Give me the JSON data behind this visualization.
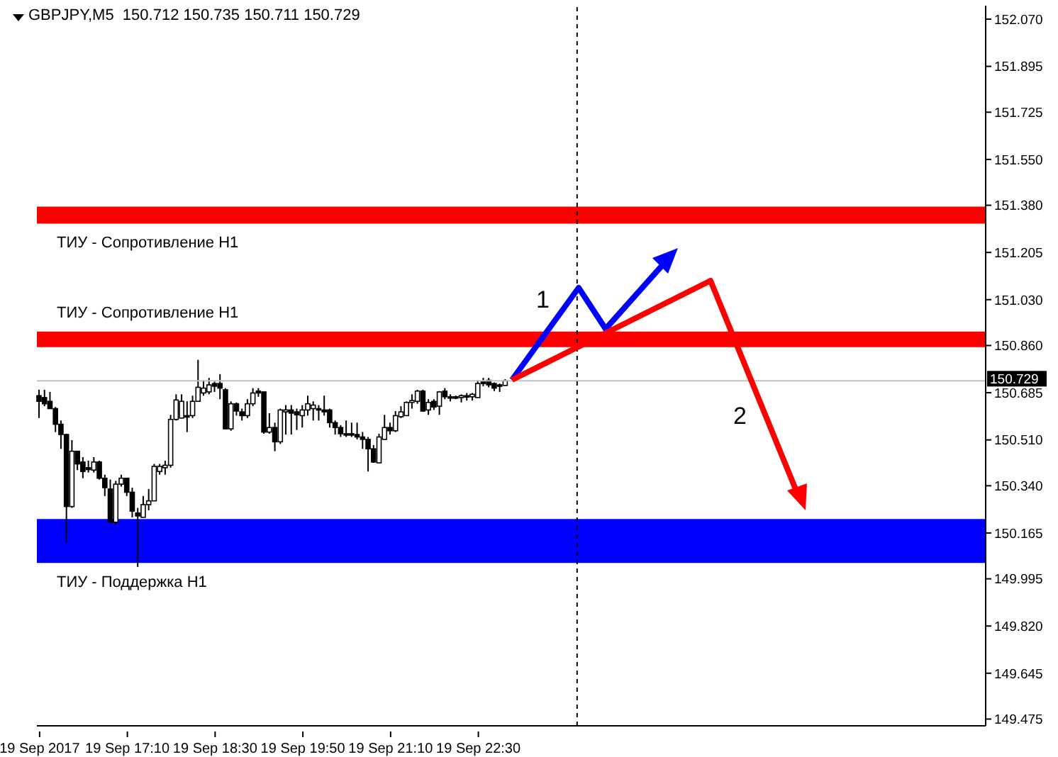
{
  "chart_data": {
    "type": "candlestick",
    "title": "GBPJPY,M5  150.712 150.735 150.711 150.729",
    "color": "#000000",
    "categories": [
      "19 Sep 2017",
      null,
      null,
      null,
      null,
      null,
      null,
      null,
      null,
      null,
      null,
      null,
      null,
      null,
      null,
      null,
      "19 Sep 17:10",
      null,
      null,
      null,
      null,
      null,
      null,
      null,
      null,
      null,
      null,
      null,
      null,
      null,
      null,
      null,
      "19 Sep 18:30",
      null,
      null,
      null,
      null,
      null,
      null,
      null,
      null,
      null,
      null,
      null,
      null,
      null,
      null,
      null,
      "19 Sep 19:50",
      null,
      null,
      null,
      null,
      null,
      null,
      null,
      null,
      null,
      null,
      null,
      null,
      null,
      null,
      null,
      "19 Sep 21:10",
      null,
      null,
      null,
      null,
      null,
      null,
      null,
      null,
      null,
      null,
      null,
      null,
      null,
      null,
      null,
      "19 Sep 22:30",
      null,
      null,
      null,
      null,
      null,
      null,
      null,
      null,
      null,
      null,
      null,
      null,
      null,
      null,
      null,
      null,
      null,
      null,
      null,
      null,
      null,
      null,
      null,
      null,
      null,
      null,
      null,
      null,
      null,
      null,
      null,
      null,
      null,
      null,
      null,
      null,
      null,
      null,
      null,
      null,
      null,
      null,
      null,
      null,
      null,
      null,
      null,
      null,
      null,
      null,
      null,
      null,
      null,
      null,
      null,
      null,
      null,
      null,
      null,
      null,
      null,
      null,
      null,
      null,
      null,
      null,
      null,
      null,
      null,
      null,
      null,
      null,
      null,
      null,
      null,
      null,
      null,
      null,
      null,
      null,
      null,
      null,
      null,
      null,
      null,
      null,
      null,
      null,
      null,
      null,
      null,
      null
    ],
    "ohlc": [
      [
        150.674,
        150.696,
        150.591,
        150.653
      ],
      [
        150.667,
        150.696,
        150.635,
        150.644
      ],
      [
        150.653,
        150.688,
        150.626,
        150.626
      ],
      [
        150.626,
        150.632,
        150.539,
        150.568
      ],
      [
        150.568,
        150.582,
        150.477,
        150.53
      ],
      [
        150.53,
        150.533,
        150.13,
        150.263
      ],
      [
        150.263,
        150.509,
        150.258,
        150.468
      ],
      [
        150.468,
        150.468,
        150.398,
        150.421
      ],
      [
        150.428,
        150.446,
        150.368,
        150.393
      ],
      [
        150.407,
        150.433,
        150.389,
        150.4
      ],
      [
        150.398,
        150.446,
        150.389,
        150.428
      ],
      [
        150.428,
        150.433,
        150.363,
        150.368
      ],
      [
        150.368,
        150.381,
        150.302,
        150.333
      ],
      [
        150.328,
        150.363,
        150.202,
        150.205
      ],
      [
        150.205,
        150.358,
        150.196,
        150.346
      ],
      [
        150.346,
        150.381,
        150.337,
        150.368
      ],
      [
        150.368,
        150.368,
        150.302,
        150.316
      ],
      [
        150.316,
        150.333,
        150.223,
        150.246
      ],
      [
        150.239,
        150.258,
        150.039,
        150.228
      ],
      [
        150.223,
        150.302,
        150.223,
        150.27
      ],
      [
        150.27,
        150.328,
        150.249,
        150.284
      ],
      [
        150.284,
        150.421,
        150.284,
        150.412
      ],
      [
        150.393,
        150.421,
        150.381,
        150.412
      ],
      [
        150.407,
        150.433,
        150.381,
        150.416
      ],
      [
        150.416,
        150.603,
        150.407,
        150.586
      ],
      [
        150.586,
        150.679,
        150.582,
        150.658
      ],
      [
        150.591,
        150.679,
        150.591,
        150.653
      ],
      [
        150.6,
        150.653,
        150.539,
        150.596
      ],
      [
        150.6,
        150.674,
        150.591,
        150.653
      ],
      [
        150.653,
        150.807,
        150.653,
        150.705
      ],
      [
        150.684,
        150.731,
        150.674,
        150.702
      ],
      [
        150.688,
        150.74,
        150.679,
        150.714
      ],
      [
        150.719,
        150.726,
        150.688,
        150.709
      ],
      [
        150.719,
        150.754,
        150.661,
        150.702
      ],
      [
        150.696,
        150.702,
        150.551,
        150.551
      ],
      [
        150.551,
        150.653,
        150.544,
        150.644
      ],
      [
        150.644,
        150.649,
        150.6,
        150.617
      ],
      [
        150.614,
        150.626,
        150.582,
        150.6
      ],
      [
        150.6,
        150.661,
        150.591,
        150.644
      ],
      [
        150.644,
        150.702,
        150.635,
        150.684
      ],
      [
        150.691,
        150.702,
        150.67,
        150.684
      ],
      [
        150.688,
        150.688,
        150.533,
        150.539
      ],
      [
        150.539,
        150.609,
        150.533,
        150.556
      ],
      [
        150.556,
        150.574,
        150.468,
        150.503
      ],
      [
        150.503,
        150.626,
        150.495,
        150.621
      ],
      [
        150.614,
        150.639,
        150.53,
        150.621
      ],
      [
        150.621,
        150.639,
        150.53,
        150.609
      ],
      [
        150.614,
        150.626,
        150.547,
        150.603
      ],
      [
        150.6,
        150.639,
        150.556,
        150.621
      ],
      [
        150.621,
        150.674,
        150.6,
        150.644
      ],
      [
        150.626,
        150.653,
        150.582,
        150.639
      ],
      [
        150.626,
        150.639,
        150.582,
        150.621
      ],
      [
        150.621,
        150.674,
        150.6,
        150.614
      ],
      [
        150.621,
        150.626,
        150.556,
        150.574
      ],
      [
        150.574,
        150.582,
        150.53,
        150.556
      ],
      [
        150.556,
        150.565,
        150.521,
        150.533
      ],
      [
        150.533,
        150.582,
        150.521,
        150.53
      ],
      [
        150.533,
        150.574,
        150.521,
        150.53
      ],
      [
        150.53,
        150.574,
        150.512,
        150.521
      ],
      [
        150.521,
        150.539,
        150.477,
        150.512
      ],
      [
        150.512,
        150.521,
        150.393,
        150.477
      ],
      [
        150.477,
        150.491,
        150.425,
        150.428
      ],
      [
        150.425,
        150.533,
        150.425,
        150.521
      ],
      [
        150.512,
        150.603,
        150.512,
        150.556
      ],
      [
        150.556,
        150.574,
        150.53,
        150.544
      ],
      [
        150.544,
        150.617,
        150.539,
        150.6
      ],
      [
        150.596,
        150.635,
        150.591,
        150.614
      ],
      [
        150.6,
        150.653,
        150.6,
        150.649
      ],
      [
        150.649,
        150.679,
        150.626,
        150.656
      ],
      [
        150.653,
        150.696,
        150.644,
        150.691
      ],
      [
        150.691,
        150.696,
        150.614,
        150.617
      ],
      [
        150.621,
        150.661,
        150.603,
        150.649
      ],
      [
        150.653,
        150.661,
        150.621,
        150.632
      ],
      [
        150.635,
        150.691,
        150.603,
        150.688
      ],
      [
        150.691,
        150.702,
        150.661,
        150.67
      ],
      [
        150.67,
        150.679,
        150.653,
        150.667
      ],
      [
        150.67,
        150.674,
        150.661,
        150.667
      ],
      [
        150.667,
        150.679,
        150.649,
        150.674
      ],
      [
        150.674,
        150.684,
        150.656,
        150.67
      ],
      [
        150.67,
        150.684,
        150.656,
        150.679
      ],
      [
        150.667,
        150.731,
        150.667,
        150.719
      ],
      [
        150.726,
        150.74,
        150.709,
        150.719
      ],
      [
        150.731,
        150.74,
        150.705,
        150.714
      ],
      [
        150.719,
        150.723,
        150.691,
        150.702
      ],
      [
        150.714,
        150.719,
        150.688,
        150.709
      ],
      [
        150.712,
        150.735,
        150.711,
        150.729
      ],
      null,
      null,
      null,
      null,
      null,
      null,
      null,
      null,
      null,
      null,
      null,
      null,
      null,
      null,
      null,
      null,
      null,
      null,
      null,
      null,
      null,
      null,
      null,
      null,
      null,
      null,
      null,
      null,
      null,
      null,
      null,
      null,
      null,
      null,
      null,
      null,
      null,
      null,
      null,
      null,
      null,
      null,
      null,
      null,
      null,
      null,
      null,
      null,
      null,
      null,
      null,
      null,
      null,
      null,
      null,
      null,
      null,
      null,
      null,
      null,
      null,
      null,
      null,
      null,
      null,
      null,
      null,
      null,
      null,
      null,
      null,
      null,
      null,
      null,
      null,
      null,
      null,
      null,
      null,
      null,
      null,
      null,
      null,
      null,
      null,
      null,
      null
    ],
    "ylim": [
      149.45,
      152.12
    ],
    "yticks": [
      {
        "value": 152.07,
        "label": "152.070"
      },
      {
        "value": 151.895,
        "label": "151.895"
      },
      {
        "value": 151.725,
        "label": "151.725"
      },
      {
        "value": 151.55,
        "label": "151.550"
      },
      {
        "value": 151.38,
        "label": "151.380"
      },
      {
        "value": 151.205,
        "label": "151.205"
      },
      {
        "value": 151.03,
        "label": "151.030"
      },
      {
        "value": 150.86,
        "label": "150.860"
      },
      {
        "value": 150.685,
        "label": "150.685"
      },
      {
        "value": 150.51,
        "label": "150.510"
      },
      {
        "value": 150.34,
        "label": "150.340"
      },
      {
        "value": 150.165,
        "label": "150.165"
      },
      {
        "value": 149.995,
        "label": "149.995"
      },
      {
        "value": 149.82,
        "label": "149.820"
      },
      {
        "value": 149.645,
        "label": "149.645"
      },
      {
        "value": 149.475,
        "label": "149.475"
      }
    ],
    "bands": [
      {
        "axis": "y",
        "from": 151.312,
        "to": 151.375,
        "label": "ТИУ - Сопротивление H1",
        "color": "#ff0000"
      },
      {
        "axis": "y",
        "from": 150.854,
        "to": 150.912,
        "label": "ТИУ - Сопротивление H1",
        "color": "#ff0000"
      },
      {
        "axis": "y",
        "from": 150.054,
        "to": 150.217,
        "label": "ТИУ - Поддержка H1",
        "color": "#0000ff"
      }
    ],
    "ref_lines": [
      {
        "axis": "y",
        "value": 150.729,
        "label": "150.729",
        "color": "#c0c0c0",
        "line_style": "solid"
      }
    ],
    "annotations": [
      "1",
      "2"
    ]
  }
}
